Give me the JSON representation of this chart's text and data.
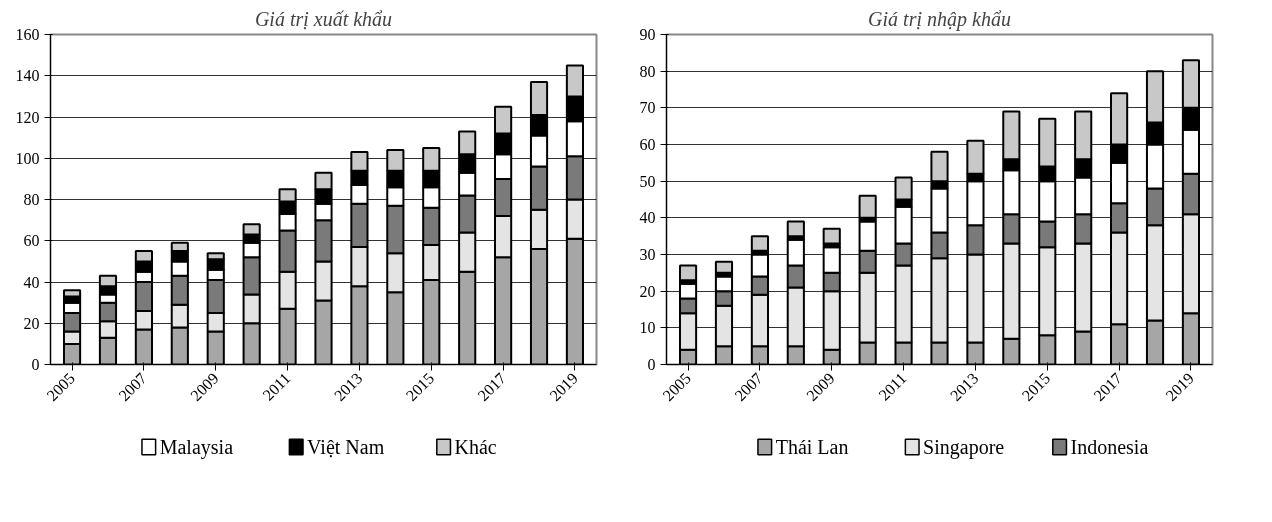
{
  "chart_data": [
    {
      "type": "bar",
      "title": "Giá trị xuất khẩu",
      "stacked": true,
      "grid": "y",
      "legend": "bottom",
      "categories": [
        "2005",
        null,
        "2007",
        null,
        "2009",
        null,
        "2011",
        null,
        "2013",
        null,
        "2015",
        null,
        "2017",
        null,
        "2019"
      ],
      "ylim": [
        0,
        160
      ],
      "yticks": [
        0,
        20,
        40,
        60,
        80,
        100,
        120,
        140,
        160
      ],
      "series": [
        {
          "color": "#a6a6a6",
          "values": [
            10,
            13,
            17,
            18,
            16,
            20,
            27,
            31,
            38,
            35,
            41,
            45,
            52,
            56,
            61
          ]
        },
        {
          "color": "#e4e4e4",
          "values": [
            6,
            8,
            9,
            11,
            9,
            14,
            18,
            19,
            19,
            19,
            17,
            19,
            20,
            19,
            19
          ]
        },
        {
          "color": "#7a7a7a",
          "values": [
            9,
            9,
            14,
            14,
            16,
            18,
            20,
            20,
            21,
            23,
            18,
            18,
            18,
            21,
            21
          ]
        },
        {
          "name": "Malaysia",
          "color": "#ffffff",
          "values": [
            5,
            4,
            5,
            7,
            5,
            7,
            8,
            8,
            9,
            9,
            10,
            11,
            12,
            15,
            17
          ]
        },
        {
          "name": "Việt Nam",
          "color": "#000000",
          "values": [
            3,
            4,
            5,
            5,
            5,
            4,
            6,
            7,
            7,
            8,
            8,
            9,
            10,
            10,
            12
          ]
        },
        {
          "name": "Khác",
          "color": "#c8c8c8",
          "values": [
            3,
            5,
            5,
            4,
            3,
            5,
            6,
            8,
            9,
            10,
            11,
            11,
            13,
            16,
            15
          ]
        }
      ]
    },
    {
      "type": "bar",
      "title": "Giá trị nhập khẩu",
      "stacked": true,
      "grid": "y",
      "legend": "bottom",
      "categories": [
        "2005",
        null,
        "2007",
        null,
        "2009",
        null,
        "2011",
        null,
        "2013",
        null,
        "2015",
        null,
        "2017",
        null,
        "2019"
      ],
      "ylim": [
        0,
        90
      ],
      "yticks": [
        0,
        10,
        20,
        30,
        40,
        50,
        60,
        70,
        80,
        90
      ],
      "series": [
        {
          "name": "Thái Lan",
          "color": "#a6a6a6",
          "values": [
            4,
            5,
            5,
            5,
            4,
            6,
            6,
            6,
            6,
            7,
            8,
            9,
            11,
            12,
            14
          ]
        },
        {
          "name": "Singapore",
          "color": "#e4e4e4",
          "values": [
            10,
            11,
            14,
            16,
            16,
            19,
            21,
            23,
            24,
            26,
            24,
            24,
            25,
            26,
            27
          ]
        },
        {
          "name": "Indonesia",
          "color": "#7a7a7a",
          "values": [
            4,
            4,
            5,
            6,
            5,
            6,
            6,
            7,
            8,
            8,
            7,
            8,
            8,
            10,
            11
          ]
        },
        {
          "color": "#ffffff",
          "values": [
            4,
            4,
            6,
            7,
            7,
            8,
            10,
            12,
            12,
            12,
            11,
            10,
            11,
            12,
            12
          ]
        },
        {
          "color": "#000000",
          "values": [
            1,
            1,
            1,
            1,
            1,
            1,
            2,
            2,
            2,
            3,
            4,
            5,
            5,
            6,
            6
          ]
        },
        {
          "color": "#c8c8c8",
          "values": [
            4,
            3,
            4,
            4,
            4,
            6,
            6,
            8,
            9,
            13,
            13,
            13,
            14,
            14,
            13
          ]
        }
      ]
    }
  ]
}
